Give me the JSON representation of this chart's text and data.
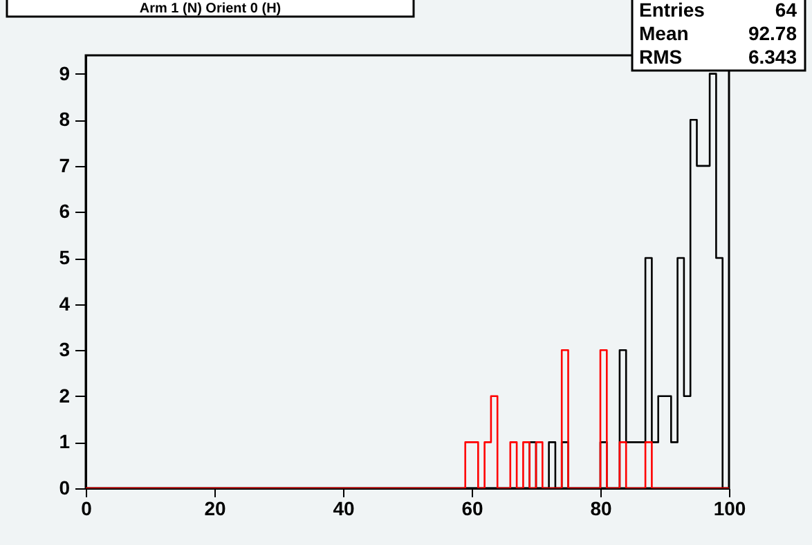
{
  "chart_data": {
    "type": "histogram",
    "title": "Arm 1 (N) Orient 0 (H)",
    "bins": [
      0,
      1,
      2,
      3,
      4,
      5,
      6,
      7,
      8,
      9,
      10,
      11,
      12,
      13,
      14,
      15,
      16,
      17,
      18,
      19,
      20,
      21,
      22,
      23,
      24,
      25,
      26,
      27,
      28,
      29,
      30,
      31,
      32,
      33,
      34,
      35,
      36,
      37,
      38,
      39,
      40,
      41,
      42,
      43,
      44,
      45,
      46,
      47,
      48,
      49,
      50,
      51,
      52,
      53,
      54,
      55,
      56,
      57,
      58,
      59,
      60,
      61,
      62,
      63,
      64,
      65,
      66,
      67,
      68,
      69,
      70,
      71,
      72,
      73,
      74,
      75,
      76,
      77,
      78,
      79,
      80,
      81,
      82,
      83,
      84,
      85,
      86,
      87,
      88,
      89,
      90,
      91,
      92,
      93,
      94,
      95,
      96,
      97,
      98,
      99,
      100
    ],
    "series": [
      {
        "color": "#000000",
        "values": [
          0,
          0,
          0,
          0,
          0,
          0,
          0,
          0,
          0,
          0,
          0,
          0,
          0,
          0,
          0,
          0,
          0,
          0,
          0,
          0,
          0,
          0,
          0,
          0,
          0,
          0,
          0,
          0,
          0,
          0,
          0,
          0,
          0,
          0,
          0,
          0,
          0,
          0,
          0,
          0,
          0,
          0,
          0,
          0,
          0,
          0,
          0,
          0,
          0,
          0,
          0,
          0,
          0,
          0,
          0,
          0,
          0,
          0,
          0,
          0,
          0,
          0,
          0,
          0,
          0,
          0,
          0,
          0,
          0,
          1,
          0,
          0,
          1,
          0,
          1,
          0,
          0,
          0,
          0,
          0,
          1,
          0,
          0,
          3,
          1,
          1,
          1,
          5,
          1,
          2,
          2,
          1,
          5,
          2,
          8,
          7,
          7,
          9,
          5,
          0
        ]
      },
      {
        "color": "#ff0000",
        "values": [
          0,
          0,
          0,
          0,
          0,
          0,
          0,
          0,
          0,
          0,
          0,
          0,
          0,
          0,
          0,
          0,
          0,
          0,
          0,
          0,
          0,
          0,
          0,
          0,
          0,
          0,
          0,
          0,
          0,
          0,
          0,
          0,
          0,
          0,
          0,
          0,
          0,
          0,
          0,
          0,
          0,
          0,
          0,
          0,
          0,
          0,
          0,
          0,
          0,
          0,
          0,
          0,
          0,
          0,
          0,
          0,
          0,
          0,
          0,
          1,
          1,
          0,
          1,
          2,
          0,
          0,
          1,
          0,
          1,
          0,
          1,
          0,
          0,
          0,
          3,
          0,
          0,
          0,
          0,
          0,
          3,
          0,
          0,
          1,
          0,
          0,
          0,
          1,
          0,
          0,
          0,
          0,
          0,
          0,
          0,
          0,
          0,
          0,
          0,
          0
        ]
      }
    ],
    "xlim": [
      0,
      100
    ],
    "xticks": [
      0,
      20,
      40,
      60,
      80,
      100
    ],
    "ylim": [
      0,
      9.4
    ],
    "yticks": [
      0,
      1,
      2,
      3,
      4,
      5,
      6,
      7,
      8,
      9
    ],
    "grid": false,
    "annotations": [
      "Entries 64",
      "Mean 92.78",
      "RMS 6.343"
    ]
  }
}
